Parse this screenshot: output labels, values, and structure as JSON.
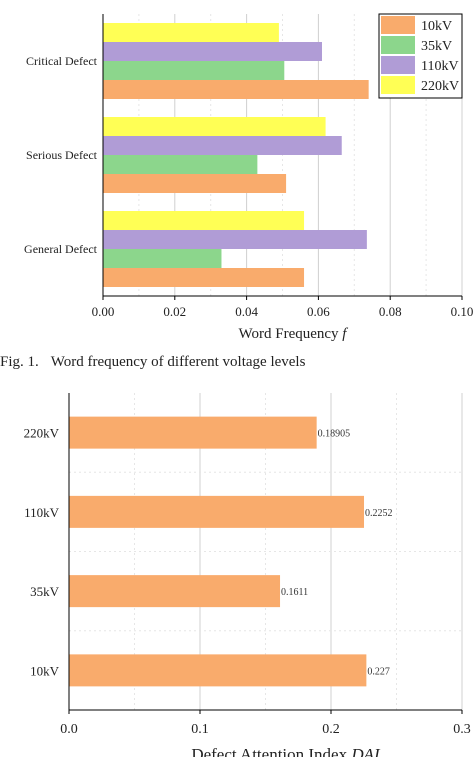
{
  "caption": {
    "number": "Fig. 1.",
    "text": "Word frequency of different voltage levels"
  },
  "chart_data": [
    {
      "type": "bar",
      "orientation": "horizontal",
      "categories": [
        "General Defect",
        "Serious Defect",
        "Critical Defect"
      ],
      "series": [
        {
          "name": "10kV",
          "color": "#f9ab6c",
          "values": [
            0.056,
            0.051,
            0.074
          ]
        },
        {
          "name": "35kV",
          "color": "#8cd68c",
          "values": [
            0.033,
            0.043,
            0.0505
          ]
        },
        {
          "name": "110kV",
          "color": "#b09cd6",
          "values": [
            0.0735,
            0.0665,
            0.061
          ]
        },
        {
          "name": "220kV",
          "color": "#ffff55",
          "values": [
            0.056,
            0.062,
            0.049
          ]
        }
      ],
      "xlabel": "Word Frequency",
      "xlabel_var": "f",
      "xlim": [
        0,
        0.1
      ],
      "xticks": [
        "0.00",
        "0.02",
        "0.04",
        "0.06",
        "0.08",
        "0.10"
      ],
      "legend": "top-right",
      "grid": true
    },
    {
      "type": "bar",
      "orientation": "horizontal",
      "categories": [
        "10kV",
        "35kV",
        "110kV",
        "220kV"
      ],
      "series": [
        {
          "color": "#f9ab6c",
          "values": [
            0.227,
            0.1611,
            0.2252,
            0.18905
          ],
          "labels": [
            "0.227",
            "0.1611",
            "0.2252",
            "0.18905"
          ]
        }
      ],
      "xlabel": "Defect Attention Index",
      "xlabel_var": "DAI",
      "xlim": [
        0,
        0.3
      ],
      "xticks": [
        "0.0",
        "0.1",
        "0.2",
        "0.3"
      ],
      "grid": true
    }
  ]
}
